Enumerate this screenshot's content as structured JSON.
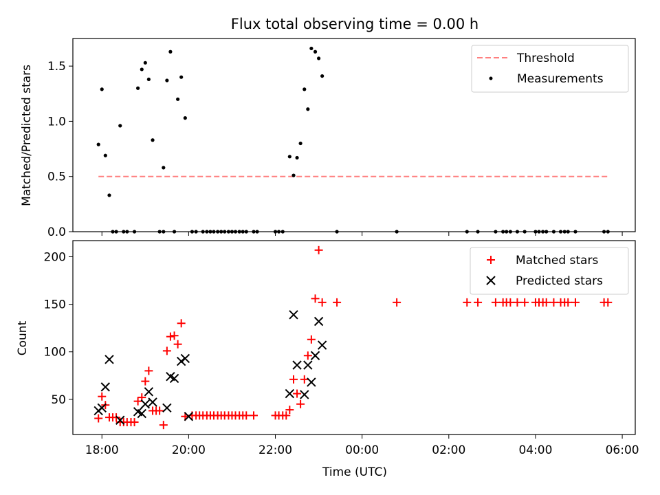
{
  "figure": {
    "title": "Flux total observing time = 0.00 h",
    "xlabel": "Time (UTC)"
  },
  "chart_data": [
    {
      "type": "scatter",
      "ylabel": "Matched/Predicted stars",
      "ylim": [
        0,
        1.75
      ],
      "yticks": [
        "0.0",
        "0.5",
        "1.0",
        "1.5"
      ],
      "xticks": [
        "18:00",
        "20:00",
        "22:00",
        "00:00",
        "02:00",
        "04:00",
        "06:00"
      ],
      "xlim_hours": [
        17.33,
        30.3
      ],
      "legend": {
        "placement": "top-right",
        "entries": [
          "Threshold",
          "Measurements"
        ]
      },
      "threshold": {
        "name": "Threshold",
        "value": 0.5,
        "x_start": 17.92,
        "x_end": 29.67,
        "color": "#ff7f7f"
      },
      "series": [
        {
          "name": "Measurements",
          "color": "#000000",
          "marker": "dot",
          "points": [
            [
              17.92,
              0.79
            ],
            [
              18.0,
              1.29
            ],
            [
              18.08,
              0.69
            ],
            [
              18.17,
              0.33
            ],
            [
              18.42,
              0.96
            ],
            [
              18.83,
              1.3
            ],
            [
              18.92,
              1.47
            ],
            [
              19.0,
              1.53
            ],
            [
              19.08,
              1.38
            ],
            [
              19.17,
              0.83
            ],
            [
              19.42,
              0.58
            ],
            [
              19.5,
              1.37
            ],
            [
              19.58,
              1.63
            ],
            [
              19.75,
              1.2
            ],
            [
              19.83,
              1.4
            ],
            [
              19.92,
              1.03
            ],
            [
              22.33,
              0.68
            ],
            [
              22.42,
              0.51
            ],
            [
              22.5,
              0.67
            ],
            [
              22.58,
              0.8
            ],
            [
              22.67,
              1.29
            ],
            [
              22.75,
              1.11
            ],
            [
              22.83,
              1.66
            ],
            [
              22.92,
              1.63
            ],
            [
              23.0,
              1.57
            ],
            [
              23.08,
              1.41
            ],
            [
              18.25,
              0
            ],
            [
              18.33,
              0
            ],
            [
              18.5,
              0
            ],
            [
              18.58,
              0
            ],
            [
              18.75,
              0
            ],
            [
              19.33,
              0
            ],
            [
              19.42,
              0
            ],
            [
              19.67,
              0
            ],
            [
              20.08,
              0
            ],
            [
              20.17,
              0
            ],
            [
              20.33,
              0
            ],
            [
              20.42,
              0
            ],
            [
              20.5,
              0
            ],
            [
              20.58,
              0
            ],
            [
              20.67,
              0
            ],
            [
              20.75,
              0
            ],
            [
              20.83,
              0
            ],
            [
              20.92,
              0
            ],
            [
              21.0,
              0
            ],
            [
              21.08,
              0
            ],
            [
              21.17,
              0
            ],
            [
              21.25,
              0
            ],
            [
              21.33,
              0
            ],
            [
              21.5,
              0
            ],
            [
              21.58,
              0
            ],
            [
              22.0,
              0
            ],
            [
              22.08,
              0
            ],
            [
              22.17,
              0
            ],
            [
              23.42,
              0
            ],
            [
              24.8,
              0
            ],
            [
              26.42,
              0
            ],
            [
              26.67,
              0
            ],
            [
              27.08,
              0
            ],
            [
              27.25,
              0
            ],
            [
              27.33,
              0
            ],
            [
              27.42,
              0
            ],
            [
              27.58,
              0
            ],
            [
              27.75,
              0
            ],
            [
              28.0,
              0
            ],
            [
              28.08,
              0
            ],
            [
              28.17,
              0
            ],
            [
              28.25,
              0
            ],
            [
              28.42,
              0
            ],
            [
              28.58,
              0
            ],
            [
              28.67,
              0
            ],
            [
              28.75,
              0
            ],
            [
              28.92,
              0
            ],
            [
              29.58,
              0
            ],
            [
              29.67,
              0
            ]
          ]
        }
      ]
    },
    {
      "type": "scatter",
      "ylabel": "Count",
      "ylim": [
        13,
        217
      ],
      "yticks": [
        "50",
        "100",
        "150",
        "200"
      ],
      "xticks": [
        "18:00",
        "20:00",
        "22:00",
        "00:00",
        "02:00",
        "04:00",
        "06:00"
      ],
      "xlim_hours": [
        17.33,
        30.3
      ],
      "legend": {
        "placement": "top-right",
        "entries": [
          "Matched stars",
          "Predicted stars"
        ]
      },
      "series": [
        {
          "name": "Matched stars",
          "color": "#ff0000",
          "marker": "plus",
          "points": [
            [
              17.92,
              30
            ],
            [
              18.0,
              53
            ],
            [
              18.08,
              44
            ],
            [
              18.17,
              31
            ],
            [
              18.25,
              31
            ],
            [
              18.33,
              31
            ],
            [
              18.42,
              26
            ],
            [
              18.5,
              26
            ],
            [
              18.58,
              26
            ],
            [
              18.67,
              26
            ],
            [
              18.75,
              26
            ],
            [
              18.83,
              48
            ],
            [
              18.92,
              52
            ],
            [
              19.0,
              69
            ],
            [
              19.08,
              80
            ],
            [
              19.17,
              38
            ],
            [
              19.25,
              38
            ],
            [
              19.33,
              38
            ],
            [
              19.42,
              23
            ],
            [
              19.5,
              101
            ],
            [
              19.58,
              116
            ],
            [
              19.67,
              117
            ],
            [
              19.75,
              108
            ],
            [
              19.83,
              130
            ],
            [
              19.92,
              32
            ],
            [
              20.08,
              33
            ],
            [
              20.17,
              33
            ],
            [
              20.25,
              33
            ],
            [
              20.33,
              33
            ],
            [
              20.42,
              33
            ],
            [
              20.5,
              33
            ],
            [
              20.58,
              33
            ],
            [
              20.67,
              33
            ],
            [
              20.75,
              33
            ],
            [
              20.83,
              33
            ],
            [
              20.92,
              33
            ],
            [
              21.0,
              33
            ],
            [
              21.08,
              33
            ],
            [
              21.17,
              33
            ],
            [
              21.25,
              33
            ],
            [
              21.33,
              33
            ],
            [
              21.5,
              33
            ],
            [
              22.0,
              33
            ],
            [
              22.08,
              33
            ],
            [
              22.17,
              33
            ],
            [
              22.25,
              33
            ],
            [
              22.33,
              39
            ],
            [
              22.42,
              71
            ],
            [
              22.5,
              56
            ],
            [
              22.58,
              45
            ],
            [
              22.67,
              71
            ],
            [
              22.75,
              96
            ],
            [
              22.83,
              113
            ],
            [
              22.92,
              156
            ],
            [
              23.0,
              207
            ],
            [
              23.08,
              152
            ],
            [
              23.42,
              152
            ],
            [
              24.8,
              152
            ],
            [
              26.42,
              152
            ],
            [
              26.67,
              152
            ],
            [
              27.08,
              152
            ],
            [
              27.25,
              152
            ],
            [
              27.33,
              152
            ],
            [
              27.42,
              152
            ],
            [
              27.58,
              152
            ],
            [
              27.75,
              152
            ],
            [
              28.0,
              152
            ],
            [
              28.08,
              152
            ],
            [
              28.17,
              152
            ],
            [
              28.25,
              152
            ],
            [
              28.42,
              152
            ],
            [
              28.58,
              152
            ],
            [
              28.67,
              152
            ],
            [
              28.75,
              152
            ],
            [
              28.92,
              152
            ],
            [
              29.58,
              152
            ],
            [
              29.67,
              152
            ]
          ]
        },
        {
          "name": "Predicted stars",
          "color": "#000000",
          "marker": "x",
          "points": [
            [
              17.92,
              38
            ],
            [
              18.0,
              41
            ],
            [
              18.08,
              63
            ],
            [
              18.17,
              92
            ],
            [
              18.42,
              28
            ],
            [
              18.83,
              37
            ],
            [
              18.92,
              35
            ],
            [
              19.0,
              45
            ],
            [
              19.08,
              58
            ],
            [
              19.17,
              47
            ],
            [
              19.5,
              41
            ],
            [
              19.58,
              74
            ],
            [
              19.67,
              72
            ],
            [
              19.83,
              90
            ],
            [
              19.92,
              93
            ],
            [
              20.0,
              32
            ],
            [
              22.33,
              56
            ],
            [
              22.42,
              139
            ],
            [
              22.5,
              86
            ],
            [
              22.67,
              55
            ],
            [
              22.75,
              86
            ],
            [
              22.83,
              68
            ],
            [
              22.92,
              96
            ],
            [
              23.0,
              132
            ],
            [
              23.08,
              107
            ]
          ]
        }
      ]
    }
  ]
}
